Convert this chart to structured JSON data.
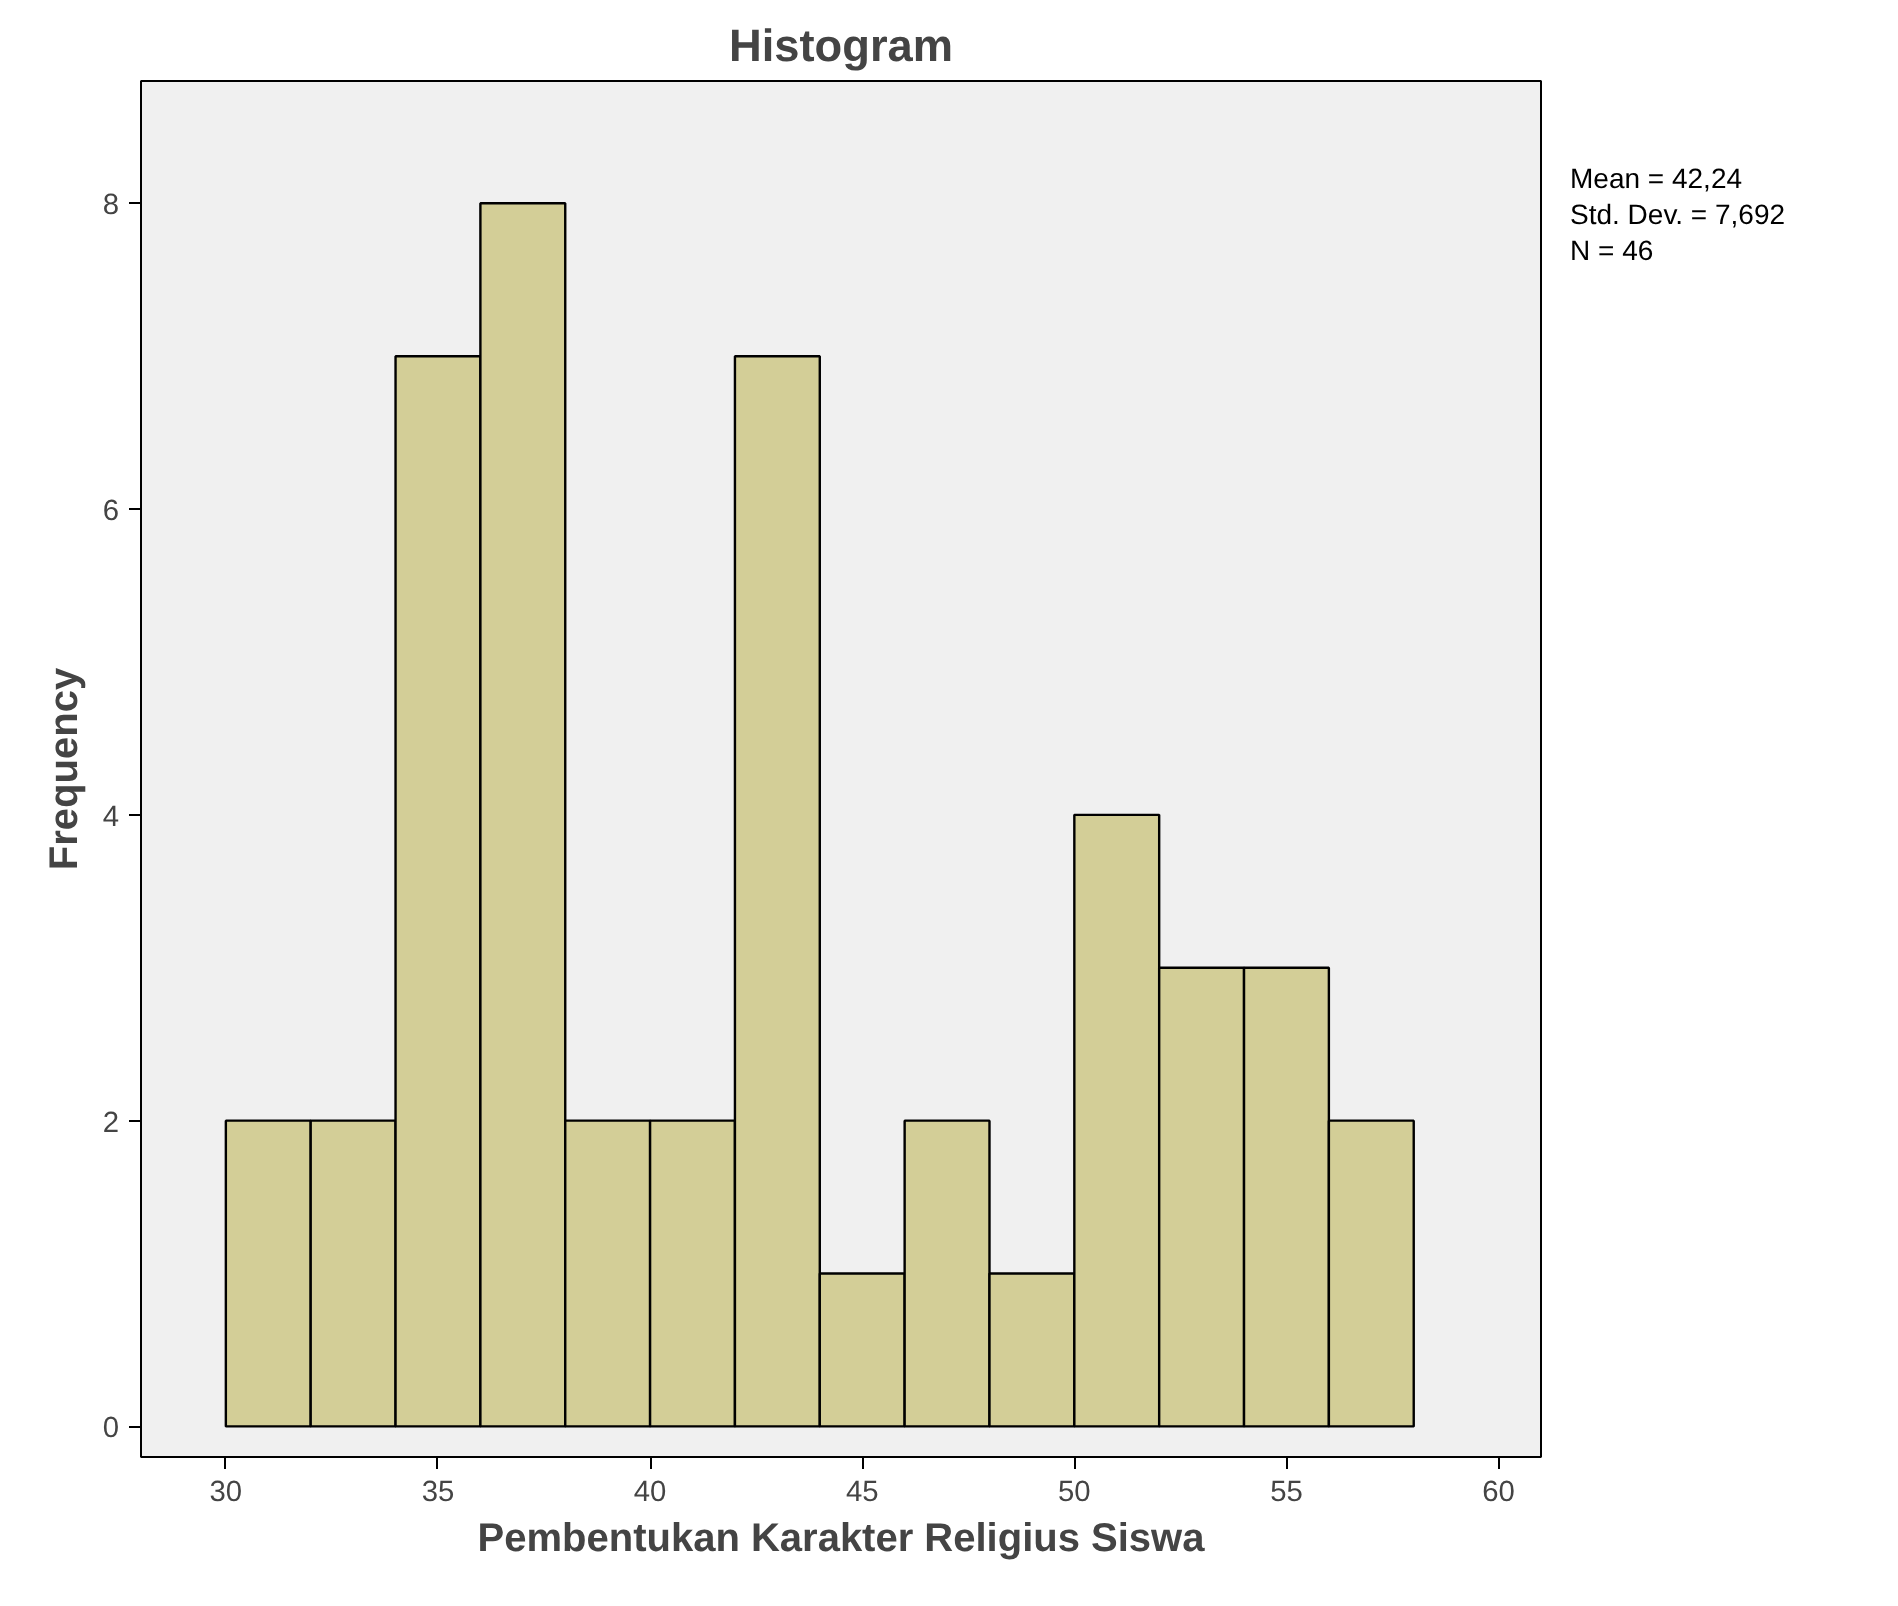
{
  "chart_data": {
    "type": "histogram",
    "title": "Histogram",
    "xlabel": "Pembentukan Karakter Religius Siswa",
    "ylabel": "Frequency",
    "bins": [
      30,
      32,
      34,
      36,
      38,
      40,
      42,
      44,
      46,
      48,
      50,
      52,
      54,
      56,
      58
    ],
    "values": [
      2,
      2,
      7,
      8,
      2,
      2,
      7,
      1,
      2,
      1,
      4,
      3,
      3,
      2
    ],
    "color": "#d3ce97",
    "xlim": [
      28,
      61
    ],
    "ylim": [
      -0.2,
      8.8
    ],
    "xticks": [
      30,
      35,
      40,
      45,
      50,
      55,
      60
    ],
    "yticks": [
      0,
      2,
      4,
      6,
      8
    ],
    "grid": false,
    "annotations": [
      "Mean = 42,24",
      "Std. Dev. = 7,692",
      "N = 46"
    ]
  }
}
